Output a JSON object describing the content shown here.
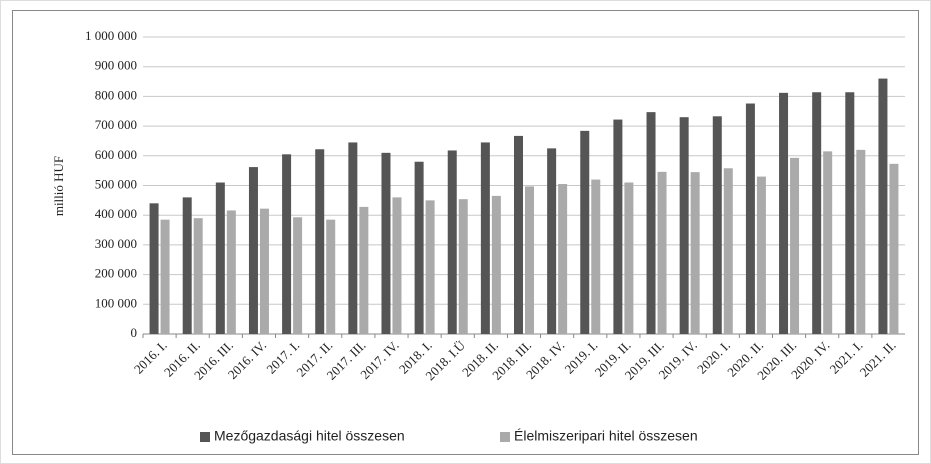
{
  "chart_data": {
    "type": "bar",
    "ylabel": "millió HUF",
    "categories": [
      "2016. I.",
      "2016. II.",
      "2016. III.",
      "2016. IV.",
      "2017. I.",
      "2017. II.",
      "2017. III.",
      "2017. IV.",
      "2018. I.",
      "2018. I.Ü",
      "2018. II.",
      "2018. III.",
      "2018. IV.",
      "2019. I.",
      "2019. II.",
      "2019. III.",
      "2019. IV.",
      "2020. I.",
      "2020. II.",
      "2020. III.",
      "2020. IV.",
      "2021. I.",
      "2021. II."
    ],
    "series": [
      {
        "name": "Mezőgazdasági hitel összesen",
        "color": "#555555",
        "values": [
          440000,
          460000,
          510000,
          562000,
          605000,
          622000,
          645000,
          610000,
          580000,
          618000,
          645000,
          667000,
          625000,
          684000,
          722000,
          747000,
          730000,
          733000,
          776000,
          812000,
          814000,
          814000,
          860000
        ]
      },
      {
        "name": "Élelmiszeripari hitel összesen",
        "color": "#aaaaaa",
        "values": [
          385000,
          390000,
          416000,
          422000,
          393000,
          385000,
          428000,
          460000,
          450000,
          454000,
          465000,
          497000,
          505000,
          520000,
          510000,
          546000,
          545000,
          558000,
          530000,
          593000,
          615000,
          620000,
          573000
        ]
      }
    ],
    "ylim": [
      0,
      1000000
    ],
    "yticks": [
      0,
      {
        "value": 100000,
        "label": "100 000"
      },
      {
        "value": 200000,
        "label": "200 000"
      },
      {
        "value": 300000,
        "label": "300 000"
      },
      {
        "value": 400000,
        "label": "400 000"
      },
      {
        "value": 500000,
        "label": "500 000"
      },
      {
        "value": 600000,
        "label": "600 000"
      },
      {
        "value": 700000,
        "label": "700 000"
      },
      {
        "value": 800000,
        "label": "800 000"
      },
      {
        "value": 900000,
        "label": "900 000"
      },
      {
        "value": 1000000,
        "label": "1 000 000"
      }
    ],
    "grid": true,
    "legend": "bottom"
  }
}
